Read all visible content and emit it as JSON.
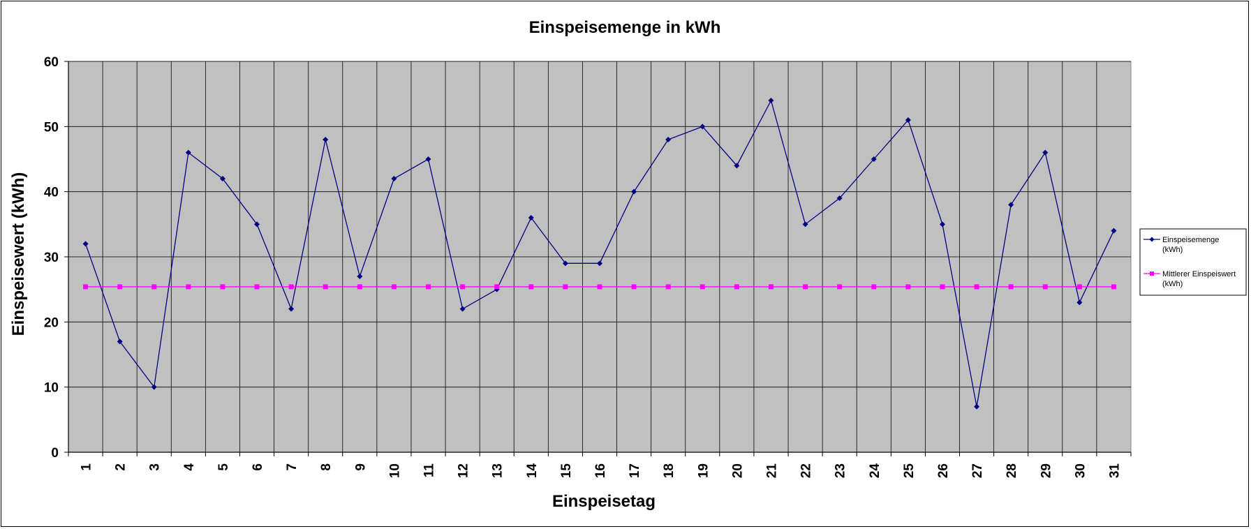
{
  "chart_data": {
    "type": "line",
    "title": "Einspeisemenge in kWh",
    "xlabel": "Einspeisetag",
    "ylabel": "Einspeisewert  (kWh)",
    "categories": [
      "1",
      "2",
      "3",
      "4",
      "5",
      "6",
      "7",
      "8",
      "9",
      "10",
      "11",
      "12",
      "13",
      "14",
      "15",
      "16",
      "17",
      "18",
      "19",
      "20",
      "21",
      "22",
      "23",
      "24",
      "25",
      "26",
      "27",
      "28",
      "29",
      "30",
      "31"
    ],
    "ylim": [
      0,
      60
    ],
    "yticks": [
      0,
      10,
      20,
      30,
      40,
      50,
      60
    ],
    "grid": true,
    "plot_background": "#c0c0c0",
    "legend_position": "right",
    "series": [
      {
        "name": "Einspeisemenge (kWh)",
        "legend_lines": [
          "Einspeisemenge",
          "(kWh)"
        ],
        "color": "#000080",
        "marker": "diamond",
        "values": [
          32,
          17,
          10,
          46,
          42,
          35,
          22,
          48,
          27,
          42,
          45,
          22,
          25,
          36,
          29,
          29,
          40,
          48,
          50,
          44,
          54,
          35,
          39,
          45,
          51,
          35,
          7,
          38,
          46,
          23,
          34
        ]
      },
      {
        "name": "Mittlerer Einspeiswert (kWh)",
        "legend_lines": [
          "Mittlerer Einspeiswert",
          "(kWh)"
        ],
        "color": "#ff00ff",
        "marker": "square",
        "values": [
          25.4,
          25.4,
          25.4,
          25.4,
          25.4,
          25.4,
          25.4,
          25.4,
          25.4,
          25.4,
          25.4,
          25.4,
          25.4,
          25.4,
          25.4,
          25.4,
          25.4,
          25.4,
          25.4,
          25.4,
          25.4,
          25.4,
          25.4,
          25.4,
          25.4,
          25.4,
          25.4,
          25.4,
          25.4,
          25.4,
          25.4
        ]
      }
    ]
  }
}
